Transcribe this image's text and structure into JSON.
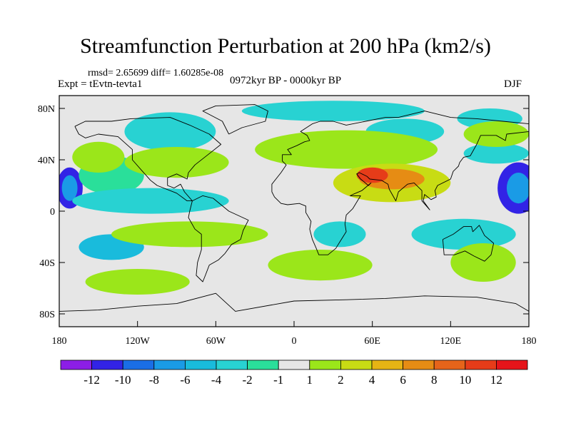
{
  "title": "Streamfunction Perturbation at 200 hPa (km2/s)",
  "stats": "rmsd= 2.65699 diff= 1.60285e-08",
  "experiment": "Expt = tEvtn-tevta1",
  "period": "0972kyr BP - 0000kyr BP",
  "season": "DJF",
  "lat_labels": [
    "80N",
    "40N",
    "0",
    "40S",
    "80S"
  ],
  "lat_values": [
    80,
    40,
    0,
    -40,
    -80
  ],
  "lon_labels": [
    "180",
    "120W",
    "60W",
    "0",
    "60E",
    "120E",
    "180"
  ],
  "lon_values": [
    -180,
    -120,
    -60,
    0,
    60,
    120,
    180
  ],
  "colorbar": {
    "labels": [
      "-12",
      "-10",
      "-8",
      "-6",
      "-4",
      "-2",
      "-1",
      "1",
      "2",
      "4",
      "6",
      "8",
      "10",
      "12"
    ],
    "colors": [
      "#8c1ee6",
      "#3223e6",
      "#1a6ee6",
      "#1a9be6",
      "#19bbdc",
      "#28d2d2",
      "#2adf9a",
      "#e6e6e6",
      "#9be61a",
      "#c8dc14",
      "#e6b414",
      "#e68c14",
      "#e6641a",
      "#e63c19",
      "#e6141a"
    ]
  },
  "map_data": {
    "type": "filled-contour",
    "units": "km2/s",
    "lon_range": [
      -180,
      180
    ],
    "lat_range": [
      -90,
      90
    ],
    "features": [
      {
        "lon": -172,
        "lat": 18,
        "rx": 10,
        "ry": 16,
        "level": 1
      },
      {
        "lon": -172,
        "lat": 18,
        "rx": 6,
        "ry": 10,
        "level": 3
      },
      {
        "lon": 172,
        "lat": 18,
        "rx": 16,
        "ry": 20,
        "level": 1
      },
      {
        "lon": 172,
        "lat": 18,
        "rx": 9,
        "ry": 12,
        "level": 3
      },
      {
        "lon": -140,
        "lat": 28,
        "rx": 25,
        "ry": 15,
        "level": 6
      },
      {
        "lon": -95,
        "lat": 62,
        "rx": 35,
        "ry": 15,
        "level": 5
      },
      {
        "lon": -110,
        "lat": 8,
        "rx": 60,
        "ry": 10,
        "level": 5
      },
      {
        "lon": -140,
        "lat": -28,
        "rx": 25,
        "ry": 10,
        "level": 4
      },
      {
        "lon": 30,
        "lat": 78,
        "rx": 70,
        "ry": 8,
        "level": 5
      },
      {
        "lon": 85,
        "lat": 62,
        "rx": 30,
        "ry": 10,
        "level": 5
      },
      {
        "lon": 150,
        "lat": 72,
        "rx": 25,
        "ry": 8,
        "level": 5
      },
      {
        "lon": 155,
        "lat": 45,
        "rx": 25,
        "ry": 8,
        "level": 5
      },
      {
        "lon": -55,
        "lat": -18,
        "rx": 25,
        "ry": 8,
        "level": 5
      },
      {
        "lon": 35,
        "lat": -18,
        "rx": 20,
        "ry": 10,
        "level": 5
      },
      {
        "lon": 130,
        "lat": -18,
        "rx": 40,
        "ry": 12,
        "level": 5
      },
      {
        "lon": -150,
        "lat": 42,
        "rx": 20,
        "ry": 12,
        "level": 8
      },
      {
        "lon": -90,
        "lat": 38,
        "rx": 40,
        "ry": 12,
        "level": 8
      },
      {
        "lon": -80,
        "lat": -18,
        "rx": 60,
        "ry": 10,
        "level": 8
      },
      {
        "lon": 40,
        "lat": 48,
        "rx": 70,
        "ry": 15,
        "level": 8
      },
      {
        "lon": 75,
        "lat": 22,
        "rx": 45,
        "ry": 15,
        "level": 9
      },
      {
        "lon": 75,
        "lat": 25,
        "rx": 25,
        "ry": 8,
        "level": 11
      },
      {
        "lon": 60,
        "lat": 28,
        "rx": 12,
        "ry": 6,
        "level": 13
      },
      {
        "lon": 20,
        "lat": -42,
        "rx": 40,
        "ry": 12,
        "level": 8
      },
      {
        "lon": -120,
        "lat": -55,
        "rx": 40,
        "ry": 10,
        "level": 8
      },
      {
        "lon": 155,
        "lat": 60,
        "rx": 25,
        "ry": 10,
        "level": 8
      },
      {
        "lon": 145,
        "lat": -40,
        "rx": 25,
        "ry": 15,
        "level": 8
      }
    ]
  }
}
